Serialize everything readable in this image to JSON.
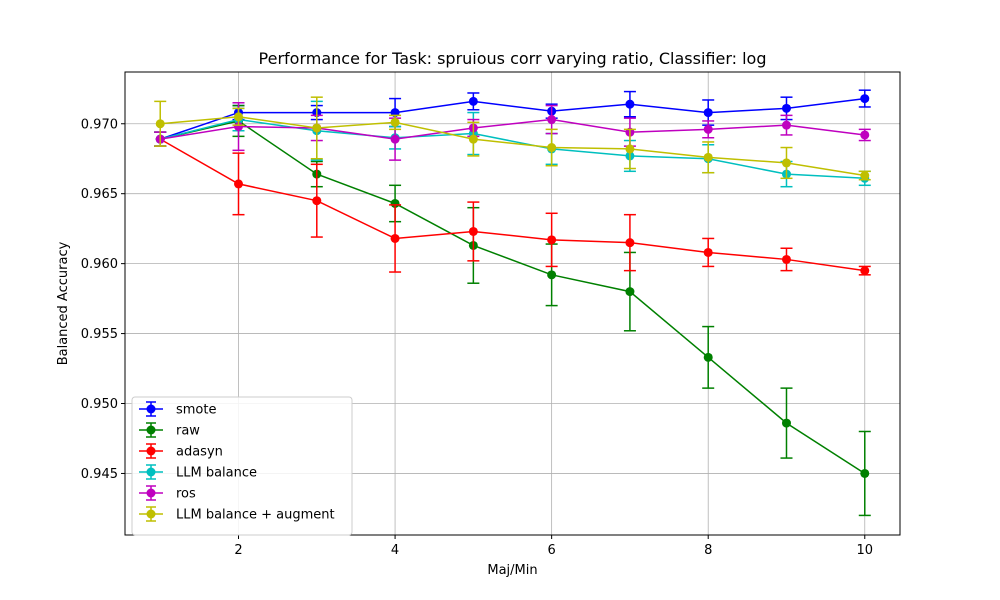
{
  "chart_data": {
    "type": "line",
    "title": "Performance for Task: spruious corr varying ratio, Classifier: log",
    "xlabel": "Maj/Min",
    "ylabel": "Balanced Accuracy",
    "x": [
      1,
      2,
      3,
      4,
      5,
      6,
      7,
      8,
      9,
      10
    ],
    "xlim": [
      0.55,
      10.45
    ],
    "ylim": [
      0.9406,
      0.9737
    ],
    "xticks": [
      2,
      4,
      6,
      8,
      10
    ],
    "yticks": [
      0.945,
      0.95,
      0.955,
      0.96,
      0.965,
      0.97
    ],
    "ytick_labels": [
      "0.945",
      "0.950",
      "0.955",
      "0.960",
      "0.965",
      "0.970"
    ],
    "grid": true,
    "legend_position": "lower-left",
    "series": [
      {
        "name": "smote",
        "color": "#0000ff",
        "values": [
          0.9689,
          0.9708,
          0.9708,
          0.9708,
          0.9716,
          0.9709,
          0.9714,
          0.9708,
          0.9711,
          0.9718
        ],
        "errors": [
          0.0005,
          0.0005,
          0.0005,
          0.001,
          0.0006,
          0.0005,
          0.0009,
          0.0009,
          0.0008,
          0.0006
        ]
      },
      {
        "name": "raw",
        "color": "#008000",
        "values": [
          0.9689,
          0.9702,
          0.9664,
          0.9643,
          0.9613,
          0.9592,
          0.958,
          0.9533,
          0.9486,
          0.945
        ],
        "errors": [
          0.0005,
          0.0011,
          0.0009,
          0.0013,
          0.0027,
          0.0022,
          0.0028,
          0.0022,
          0.0025,
          0.003
        ]
      },
      {
        "name": "adasyn",
        "color": "#ff0000",
        "values": [
          0.9689,
          0.9657,
          0.9645,
          0.9618,
          0.9623,
          0.9617,
          0.9615,
          0.9608,
          0.9603,
          0.9595
        ],
        "errors": [
          0.0005,
          0.0022,
          0.0026,
          0.0024,
          0.0021,
          0.0019,
          0.002,
          0.001,
          0.0008,
          0.0003
        ]
      },
      {
        "name": "LLM balance",
        "color": "#00bfbf",
        "values": [
          0.9689,
          0.9703,
          0.9695,
          0.969,
          0.9693,
          0.9682,
          0.9677,
          0.9675,
          0.9664,
          0.9661
        ],
        "errors": [
          0.0005,
          0.0008,
          0.0021,
          0.0008,
          0.0015,
          0.0011,
          0.0011,
          0.001,
          0.0009,
          0.0005
        ]
      },
      {
        "name": "ros",
        "color": "#bf00bf",
        "values": [
          0.9689,
          0.9698,
          0.9697,
          0.9689,
          0.9697,
          0.9703,
          0.9694,
          0.9696,
          0.9699,
          0.9692
        ],
        "errors": [
          0.0005,
          0.0017,
          0.0009,
          0.0015,
          0.0006,
          0.001,
          0.001,
          0.0006,
          0.0007,
          0.0004
        ]
      },
      {
        "name": "LLM balance + augment",
        "color": "#bfbf00",
        "values": [
          0.97,
          0.9705,
          0.9697,
          0.9701,
          0.9689,
          0.9683,
          0.9682,
          0.9676,
          0.9672,
          0.9663
        ],
        "errors": [
          0.0016,
          0.0006,
          0.0022,
          0.0005,
          0.0012,
          0.0013,
          0.0014,
          0.0011,
          0.0011,
          0.0003
        ]
      }
    ]
  }
}
